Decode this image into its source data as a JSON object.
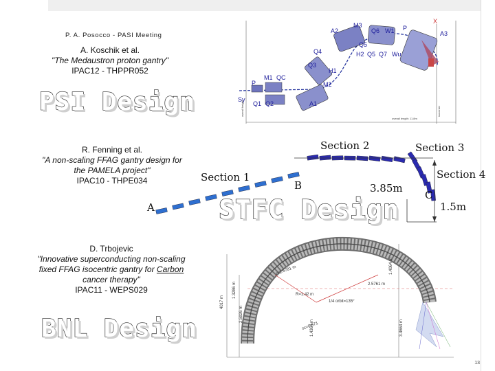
{
  "header": {
    "meeting": "P. A. Posocco - PASI Meeting"
  },
  "refs": {
    "psi": {
      "authors": "A. Koschik et al.",
      "title": "\"The Medaustron proton gantry\"",
      "code": "IPAC12 - THPPR052"
    },
    "stfc": {
      "authors": "R. Fenning et al.",
      "title1": "\"A non-scaling FFAG gantry design for",
      "title2": "the PAMELA project\"",
      "code": "IPAC10 - THPE034"
    },
    "bnl": {
      "authors": "D. Trbojevic",
      "title1": "\"Innovative superconducting non-scaling",
      "title2": "fixed FFAG isocentric gantry for ",
      "title2_link": "Carbon",
      "title3": "cancer therapy\"",
      "code": "IPAC11 - WEPS029"
    }
  },
  "labels": {
    "psi": "PSI Design",
    "stfc": "STFC Design",
    "bnl": "BNL Design"
  },
  "psi_figure": {
    "magnets_top": [
      "A2",
      "M3",
      "Q6",
      "W1",
      "P",
      "X",
      "A3"
    ],
    "magnets_mid": [
      "Q5",
      "Q4",
      "H2",
      "Q5",
      "Q7",
      "Wu"
    ],
    "magnets_low": [
      "Q3",
      "H1",
      "M2"
    ],
    "magnets_left": [
      "P",
      "M1",
      "QC",
      "Sy",
      "Q1",
      "Q2",
      "A1"
    ],
    "dims": {
      "overall_length": "overall length: 11.8m",
      "overall_height": "overall height",
      "isocenter": "isocenter"
    }
  },
  "stfc_figure": {
    "sections": [
      "Section 1",
      "Section 2",
      "Section 3",
      "Section 4"
    ],
    "points": [
      "A",
      "B",
      "C"
    ],
    "dims": [
      "3.85m",
      "1.5m"
    ]
  },
  "bnl_figure": {
    "dims": [
      "4017 m",
      "2.5926 m",
      "1.3286 m",
      "1.4364 m",
      "3.4664 m",
      "1.4064 m",
      "2.5761 m"
    ],
    "annotations": [
      "r=2.5781 m",
      "R=1.42 m",
      "1/4 orbit=135°",
      "sc=0.571"
    ]
  },
  "footer": {
    "page": "13"
  }
}
